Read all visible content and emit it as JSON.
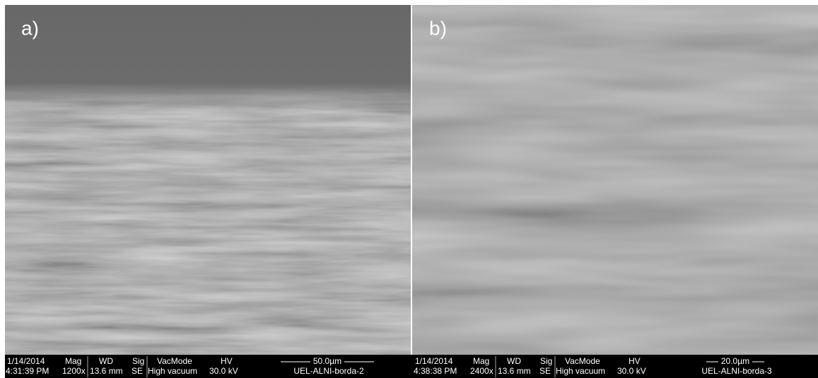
{
  "panels": [
    {
      "label": "a)",
      "date": "1/14/2014",
      "time": "4:31:39 PM",
      "mag_header": "Mag",
      "mag": "1200x",
      "wd_header": "WD",
      "wd": "13.6 mm",
      "sig_header": "Sig",
      "sig": "SE",
      "vac_header": "VacMode",
      "vac": "High vacuum",
      "hv_header": "HV",
      "hv": "30.0 kV",
      "scale": "50.0µm",
      "sample": "UEL-ALNI-borda-2"
    },
    {
      "label": "b)",
      "date": "1/14/2014",
      "time": "4:38:38 PM",
      "mag_header": "Mag",
      "mag": "2400x",
      "wd_header": "WD",
      "wd": "13.6 mm",
      "sig_header": "Sig",
      "sig": "SE",
      "vac_header": "VacMode",
      "vac": "High vacuum",
      "hv_header": "HV",
      "hv": "30.0 kV",
      "scale": "20.0µm",
      "sample": "UEL-ALNI-borda-3"
    }
  ]
}
